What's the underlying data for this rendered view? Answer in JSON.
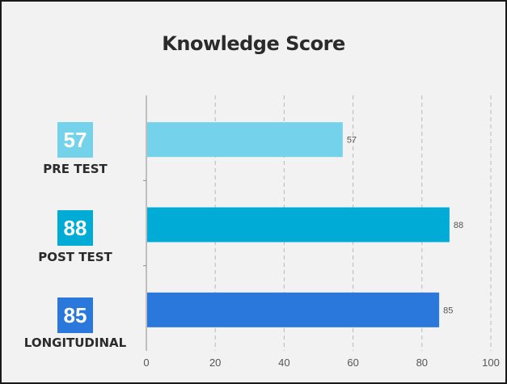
{
  "chart_data": {
    "type": "bar",
    "orientation": "horizontal",
    "title": "Knowledge Score",
    "categories": [
      "PRE TEST",
      "POST TEST",
      "LONGITUDINAL"
    ],
    "values": [
      57,
      88,
      85
    ],
    "badges": [
      "57",
      "88",
      "85"
    ],
    "colors": [
      "#74d3ea",
      "#00acd6",
      "#2a78dc"
    ],
    "xlim": [
      0,
      100
    ],
    "xticks": [
      "0",
      "20",
      "40",
      "60",
      "80",
      "100"
    ],
    "grid": true,
    "gridline_style": "dashed",
    "legend": "none"
  }
}
